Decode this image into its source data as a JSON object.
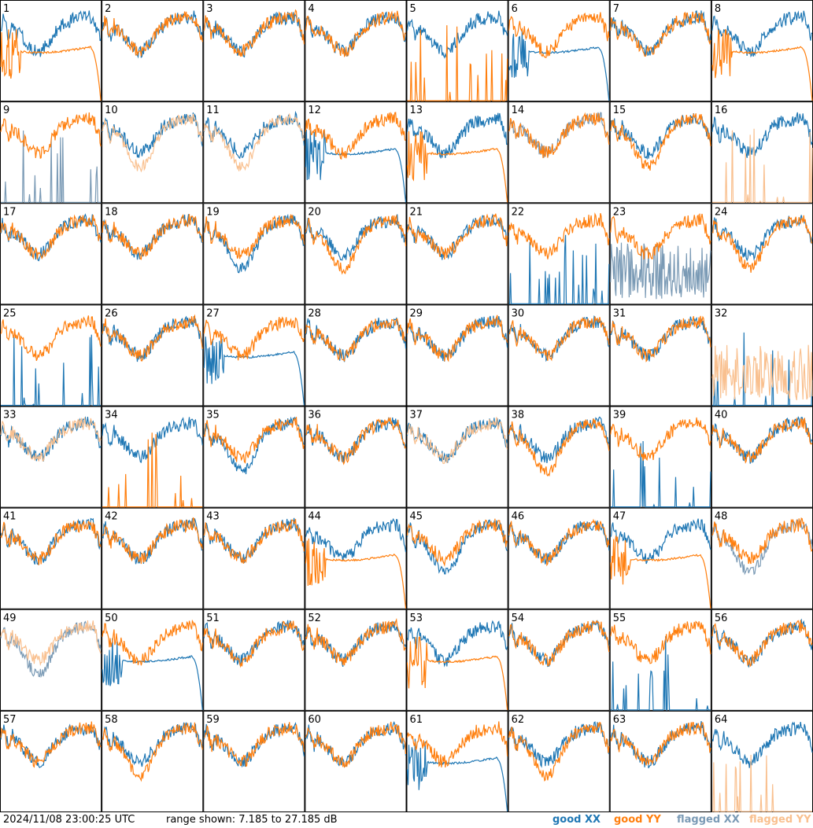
{
  "footer": {
    "timestamp": "2024/11/08 23:00:25 UTC",
    "range_text": "range shown: 7.185 to 27.185 dB"
  },
  "legend": {
    "good_xx": "good XX",
    "good_yy": "good YY",
    "flagged_xx": "flagged XX",
    "flagged_yy": "flagged YY"
  },
  "colors": {
    "good_xx": "#1f77b4",
    "good_yy": "#ff7f0e",
    "flagged_xx": "#7a9ab5",
    "flagged_yy": "#f9c08f"
  },
  "chart_data": {
    "type": "line",
    "grid": "8x8 small multiples",
    "ylim_db": [
      7.185,
      27.185
    ],
    "tiles": [
      {
        "id": 1,
        "xx": "good",
        "yy": "good",
        "xx_shape": "normal",
        "yy_shape": "plateau_rolloff"
      },
      {
        "id": 2,
        "xx": "good",
        "yy": "good",
        "xx_shape": "normal",
        "yy_shape": "normal"
      },
      {
        "id": 3,
        "xx": "good",
        "yy": "good",
        "xx_shape": "normal",
        "yy_shape": "normal"
      },
      {
        "id": 4,
        "xx": "good",
        "yy": "good",
        "xx_shape": "normal",
        "yy_shape": "normal"
      },
      {
        "id": 5,
        "xx": "good",
        "yy": "good",
        "xx_shape": "normal",
        "yy_shape": "spikes"
      },
      {
        "id": 6,
        "xx": "good",
        "yy": "good",
        "xx_shape": "plateau_rolloff",
        "yy_shape": "normal"
      },
      {
        "id": 7,
        "xx": "good",
        "yy": "good",
        "xx_shape": "normal",
        "yy_shape": "normal"
      },
      {
        "id": 8,
        "xx": "good",
        "yy": "good",
        "xx_shape": "normal",
        "yy_shape": "plateau_rolloff"
      },
      {
        "id": 9,
        "xx": "flagged",
        "yy": "good",
        "xx_shape": "spikes",
        "yy_shape": "normal"
      },
      {
        "id": 10,
        "xx": "good",
        "yy": "flagged",
        "xx_shape": "normal",
        "yy_shape": "deep"
      },
      {
        "id": 11,
        "xx": "good",
        "yy": "flagged",
        "xx_shape": "normal",
        "yy_shape": "deep"
      },
      {
        "id": 12,
        "xx": "good",
        "yy": "good",
        "xx_shape": "plateau_rolloff",
        "yy_shape": "normal"
      },
      {
        "id": 13,
        "xx": "good",
        "yy": "good",
        "xx_shape": "normal",
        "yy_shape": "plateau_rolloff"
      },
      {
        "id": 14,
        "xx": "flagged",
        "yy": "good",
        "xx_shape": "normal",
        "yy_shape": "normal"
      },
      {
        "id": 15,
        "xx": "good",
        "yy": "good",
        "xx_shape": "normal",
        "yy_shape": "deep"
      },
      {
        "id": 16,
        "xx": "good",
        "yy": "flagged",
        "xx_shape": "normal",
        "yy_shape": "spikes"
      },
      {
        "id": 17,
        "xx": "good",
        "yy": "good",
        "xx_shape": "normal",
        "yy_shape": "normal"
      },
      {
        "id": 18,
        "xx": "good",
        "yy": "good",
        "xx_shape": "normal",
        "yy_shape": "normal"
      },
      {
        "id": 19,
        "xx": "good",
        "yy": "good",
        "xx_shape": "deep",
        "yy_shape": "normal"
      },
      {
        "id": 20,
        "xx": "good",
        "yy": "good",
        "xx_shape": "normal",
        "yy_shape": "deep"
      },
      {
        "id": 21,
        "xx": "good",
        "yy": "good",
        "xx_shape": "normal",
        "yy_shape": "normal"
      },
      {
        "id": 22,
        "xx": "good",
        "yy": "good",
        "xx_shape": "spikes",
        "yy_shape": "normal"
      },
      {
        "id": 23,
        "xx": "flagged",
        "yy": "good",
        "xx_shape": "noisy",
        "yy_shape": "normal"
      },
      {
        "id": 24,
        "xx": "good",
        "yy": "good",
        "xx_shape": "normal",
        "yy_shape": "deep"
      },
      {
        "id": 25,
        "xx": "good",
        "yy": "good",
        "xx_shape": "spikes",
        "yy_shape": "normal"
      },
      {
        "id": 26,
        "xx": "good",
        "yy": "good",
        "xx_shape": "normal",
        "yy_shape": "normal"
      },
      {
        "id": 27,
        "xx": "good",
        "yy": "good",
        "xx_shape": "plateau_rolloff",
        "yy_shape": "normal"
      },
      {
        "id": 28,
        "xx": "good",
        "yy": "good",
        "xx_shape": "normal",
        "yy_shape": "normal"
      },
      {
        "id": 29,
        "xx": "good",
        "yy": "good",
        "xx_shape": "normal",
        "yy_shape": "normal"
      },
      {
        "id": 30,
        "xx": "good",
        "yy": "good",
        "xx_shape": "normal",
        "yy_shape": "normal"
      },
      {
        "id": 31,
        "xx": "good",
        "yy": "good",
        "xx_shape": "normal",
        "yy_shape": "normal"
      },
      {
        "id": 32,
        "xx": "good",
        "yy": "flagged",
        "xx_shape": "spikes",
        "yy_shape": "noisy"
      },
      {
        "id": 33,
        "xx": "good",
        "yy": "flagged",
        "xx_shape": "normal",
        "yy_shape": "normal"
      },
      {
        "id": 34,
        "xx": "good",
        "yy": "good",
        "xx_shape": "normal",
        "yy_shape": "spikes"
      },
      {
        "id": 35,
        "xx": "good",
        "yy": "good",
        "xx_shape": "deep",
        "yy_shape": "normal"
      },
      {
        "id": 36,
        "xx": "good",
        "yy": "good",
        "xx_shape": "normal",
        "yy_shape": "normal"
      },
      {
        "id": 37,
        "xx": "good",
        "yy": "flagged",
        "xx_shape": "normal",
        "yy_shape": "normal"
      },
      {
        "id": 38,
        "xx": "good",
        "yy": "good",
        "xx_shape": "normal",
        "yy_shape": "deep"
      },
      {
        "id": 39,
        "xx": "good",
        "yy": "good",
        "xx_shape": "spikes",
        "yy_shape": "normal"
      },
      {
        "id": 40,
        "xx": "good",
        "yy": "good",
        "xx_shape": "normal",
        "yy_shape": "normal"
      },
      {
        "id": 41,
        "xx": "good",
        "yy": "good",
        "xx_shape": "normal",
        "yy_shape": "normal"
      },
      {
        "id": 42,
        "xx": "good",
        "yy": "good",
        "xx_shape": "normal",
        "yy_shape": "normal"
      },
      {
        "id": 43,
        "xx": "good",
        "yy": "good",
        "xx_shape": "normal",
        "yy_shape": "normal"
      },
      {
        "id": 44,
        "xx": "good",
        "yy": "good",
        "xx_shape": "normal",
        "yy_shape": "plateau_rolloff"
      },
      {
        "id": 45,
        "xx": "good",
        "yy": "good",
        "xx_shape": "deep",
        "yy_shape": "normal"
      },
      {
        "id": 46,
        "xx": "good",
        "yy": "good",
        "xx_shape": "normal",
        "yy_shape": "normal"
      },
      {
        "id": 47,
        "xx": "good",
        "yy": "good",
        "xx_shape": "normal",
        "yy_shape": "plateau_rolloff"
      },
      {
        "id": 48,
        "xx": "flagged",
        "yy": "good",
        "xx_shape": "deep",
        "yy_shape": "normal"
      },
      {
        "id": 49,
        "xx": "flagged",
        "yy": "flagged",
        "xx_shape": "deep",
        "yy_shape": "normal"
      },
      {
        "id": 50,
        "xx": "good",
        "yy": "good",
        "xx_shape": "plateau_rolloff",
        "yy_shape": "normal"
      },
      {
        "id": 51,
        "xx": "good",
        "yy": "good",
        "xx_shape": "normal",
        "yy_shape": "normal"
      },
      {
        "id": 52,
        "xx": "good",
        "yy": "good",
        "xx_shape": "normal",
        "yy_shape": "normal"
      },
      {
        "id": 53,
        "xx": "good",
        "yy": "good",
        "xx_shape": "normal",
        "yy_shape": "plateau_rolloff"
      },
      {
        "id": 54,
        "xx": "good",
        "yy": "good",
        "xx_shape": "normal",
        "yy_shape": "normal"
      },
      {
        "id": 55,
        "xx": "good",
        "yy": "good",
        "xx_shape": "spikes",
        "yy_shape": "normal"
      },
      {
        "id": 56,
        "xx": "good",
        "yy": "good",
        "xx_shape": "normal",
        "yy_shape": "normal"
      },
      {
        "id": 57,
        "xx": "good",
        "yy": "good",
        "xx_shape": "normal",
        "yy_shape": "normal"
      },
      {
        "id": 58,
        "xx": "good",
        "yy": "good",
        "xx_shape": "normal",
        "yy_shape": "deep"
      },
      {
        "id": 59,
        "xx": "good",
        "yy": "good",
        "xx_shape": "normal",
        "yy_shape": "normal"
      },
      {
        "id": 60,
        "xx": "good",
        "yy": "good",
        "xx_shape": "normal",
        "yy_shape": "normal"
      },
      {
        "id": 61,
        "xx": "good",
        "yy": "good",
        "xx_shape": "plateau_rolloff",
        "yy_shape": "normal"
      },
      {
        "id": 62,
        "xx": "good",
        "yy": "good",
        "xx_shape": "normal",
        "yy_shape": "deep"
      },
      {
        "id": 63,
        "xx": "good",
        "yy": "good",
        "xx_shape": "normal",
        "yy_shape": "normal"
      },
      {
        "id": 64,
        "xx": "good",
        "yy": "flagged",
        "xx_shape": "normal",
        "yy_shape": "spikes"
      }
    ]
  }
}
